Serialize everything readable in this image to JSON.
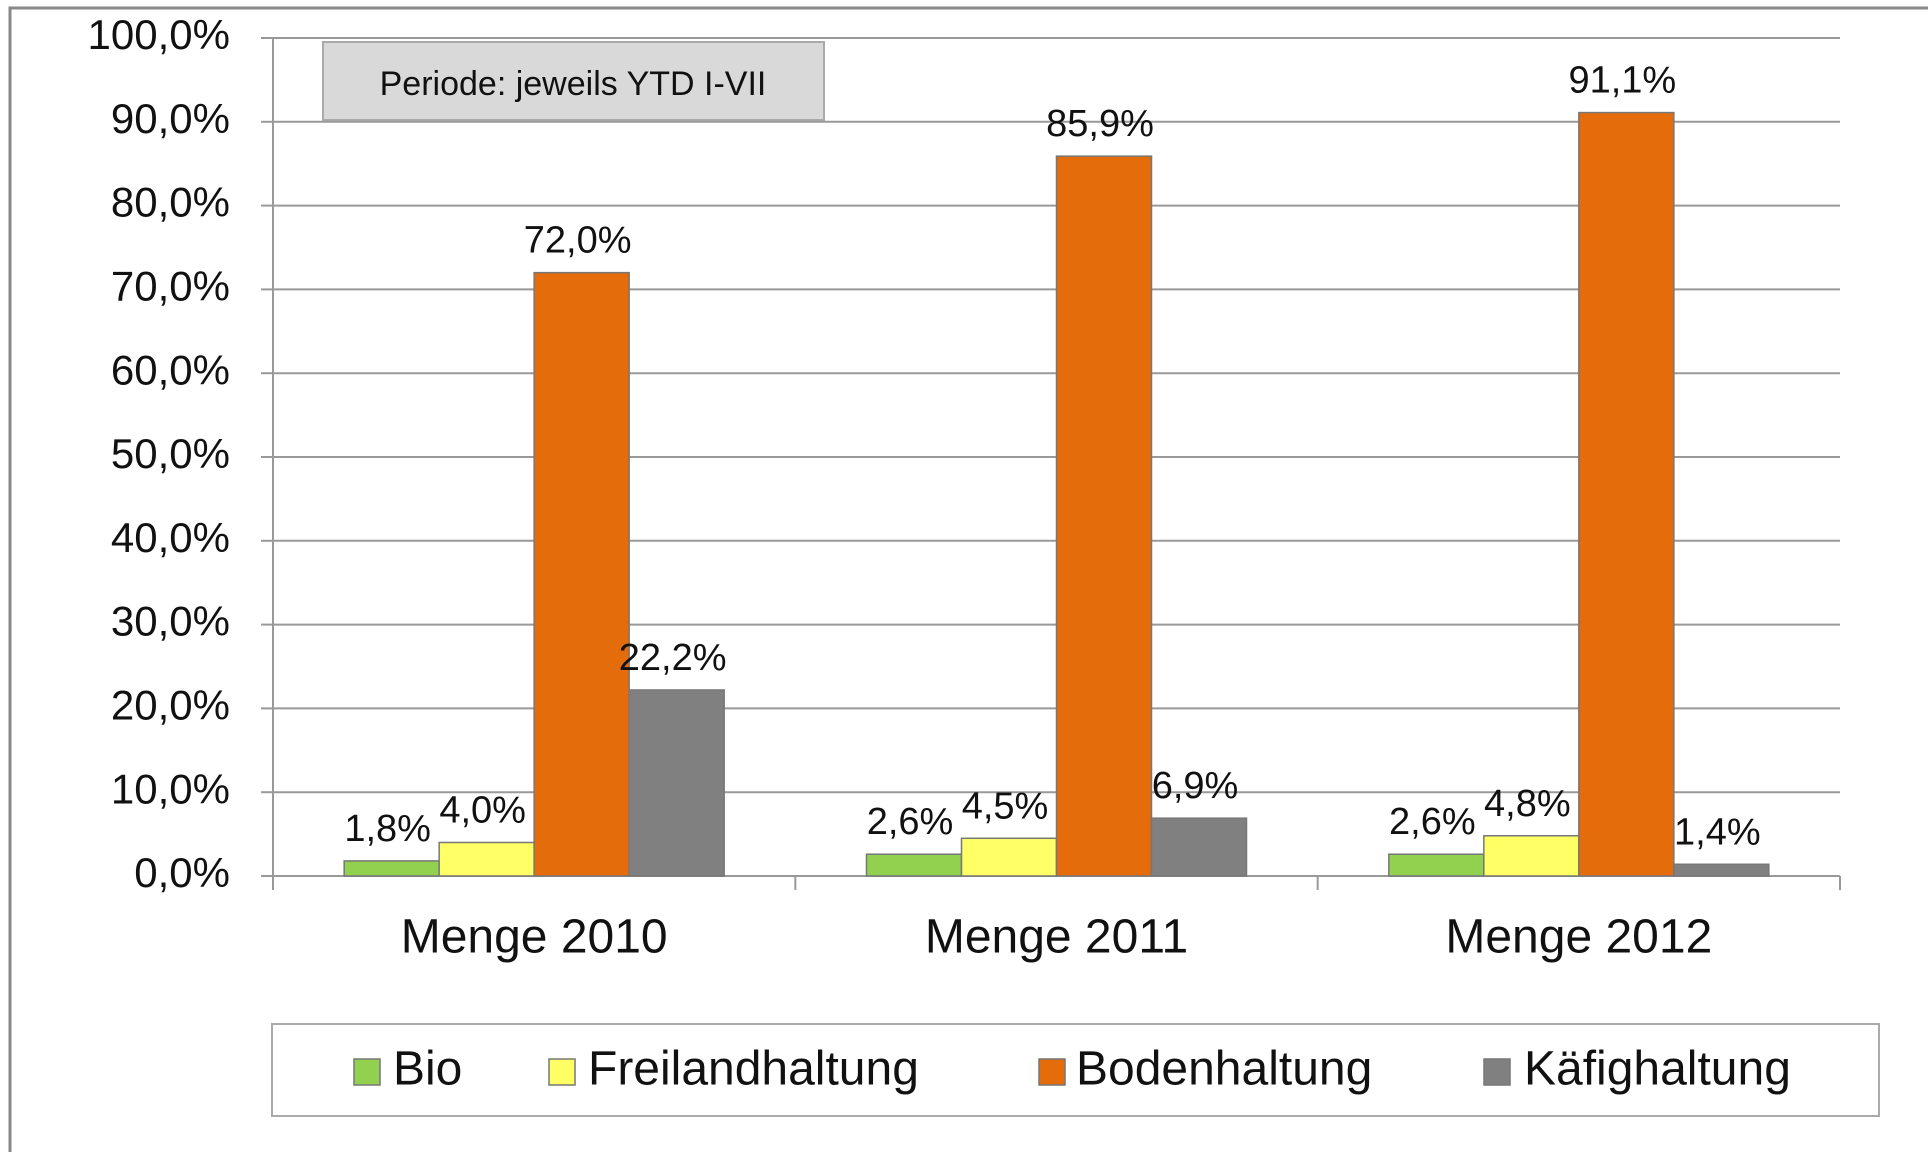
{
  "chart_data": {
    "type": "bar",
    "annotation": "Periode:  jeweils YTD I-VII",
    "categories": [
      "Menge 2010",
      "Menge 2011",
      "Menge 2012"
    ],
    "series": [
      {
        "name": "Bio",
        "color": "#92d050",
        "values": [
          1.8,
          2.6,
          2.6
        ],
        "value_labels": [
          "1,8%",
          "2,6%",
          "2,6%"
        ]
      },
      {
        "name": "Freilandhaltung",
        "color": "#ffff66",
        "values": [
          4.0,
          4.5,
          4.8
        ],
        "value_labels": [
          "4,0%",
          "4,5%",
          "4,8%"
        ]
      },
      {
        "name": "Bodenhaltung",
        "color": "#e46c0a",
        "values": [
          72.0,
          85.9,
          91.1
        ],
        "value_labels": [
          "72,0%",
          "85,9%",
          "91,1%"
        ]
      },
      {
        "name": "Käfighaltung",
        "color": "#808080",
        "values": [
          22.2,
          6.9,
          1.4
        ],
        "value_labels": [
          "22,2%",
          "6,9%",
          "1,4%"
        ]
      }
    ],
    "ylim": [
      0,
      100
    ],
    "yticks": [
      {
        "value": 0,
        "label": "0,0%"
      },
      {
        "value": 10,
        "label": "10,0%"
      },
      {
        "value": 20,
        "label": "20,0%"
      },
      {
        "value": 30,
        "label": "30,0%"
      },
      {
        "value": 40,
        "label": "40,0%"
      },
      {
        "value": 50,
        "label": "50,0%"
      },
      {
        "value": 60,
        "label": "60,0%"
      },
      {
        "value": 70,
        "label": "70,0%"
      },
      {
        "value": 80,
        "label": "80,0%"
      },
      {
        "value": 90,
        "label": "90,0%"
      },
      {
        "value": 100,
        "label": "100,0%"
      }
    ],
    "grid": true,
    "legend": "bottom"
  }
}
